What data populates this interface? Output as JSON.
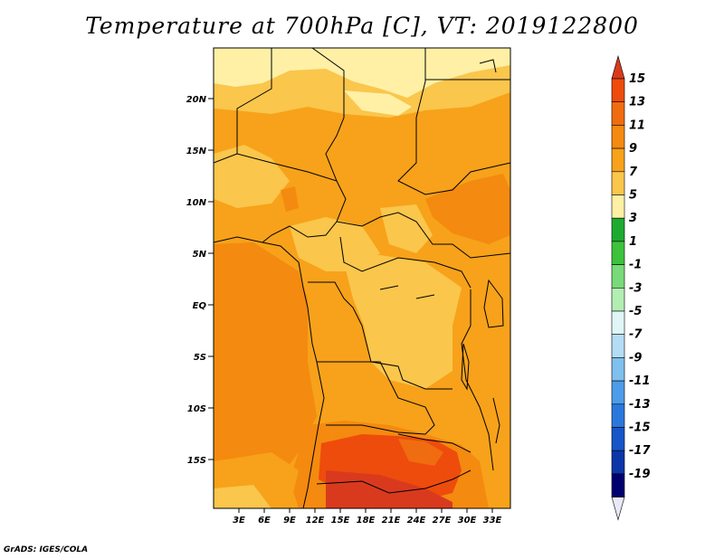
{
  "title": "Temperature at 700hPa [C], VT: 2019122800",
  "credit": "GrADS: IGES/COLA",
  "lat_labels": [
    "20N",
    "15N",
    "10N",
    "5N",
    "EQ",
    "5S",
    "10S",
    "15S"
  ],
  "lon_labels": [
    "3E",
    "6E",
    "9E",
    "12E",
    "15E",
    "18E",
    "21E",
    "24E",
    "27E",
    "30E",
    "33E"
  ],
  "colorbar": {
    "labels": [
      "15",
      "13",
      "11",
      "9",
      "7",
      "5",
      "3",
      "1",
      "-1",
      "-3",
      "-5",
      "-7",
      "-9",
      "-11",
      "-13",
      "-15",
      "-17",
      "-19"
    ],
    "colors": [
      "#d93a1e",
      "#ee4c0c",
      "#f06c10",
      "#f48a10",
      "#f7a21a",
      "#fac64c",
      "#fff0a6",
      "#1eaa30",
      "#3cc23c",
      "#78da78",
      "#b2eeb2",
      "#e0f6f6",
      "#b4ddf5",
      "#7ec0ee",
      "#4d9ce8",
      "#2a78dc",
      "#1656c8",
      "#0a36a8",
      "#000070",
      "#e8e8f8"
    ]
  },
  "field_colors": {
    "t5": "#fff0a6",
    "t7": "#fac64c",
    "t9": "#f7a21a",
    "t11": "#f48a10",
    "t13": "#ee4c0c",
    "t15": "#d93a1e"
  }
}
